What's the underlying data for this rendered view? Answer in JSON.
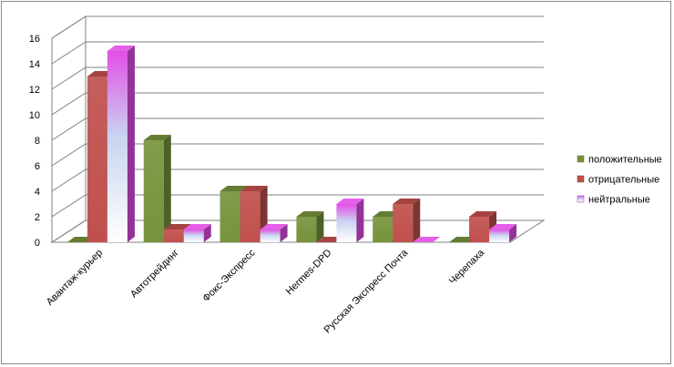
{
  "chart_data": {
    "type": "bar",
    "title": "",
    "xlabel": "",
    "ylabel": "",
    "ylim": [
      0,
      16
    ],
    "yticks": [
      0,
      2,
      4,
      6,
      8,
      10,
      12,
      14,
      16
    ],
    "grid": true,
    "legend_position": "right",
    "categories": [
      "Авантаж-курьер",
      "Автотрейдинг",
      "Фокс-Экспресс",
      "Hermes-DPD",
      "Русская Экспресс Почта",
      "Черепаха"
    ],
    "series": [
      {
        "name": "положительные",
        "values": [
          0,
          8,
          4,
          2,
          2,
          0
        ],
        "color": "#77933c"
      },
      {
        "name": "отрицательные",
        "values": [
          13,
          1,
          4,
          0,
          3,
          2
        ],
        "color": "#c0504d"
      },
      {
        "name": "нейтральные",
        "values": [
          15,
          1,
          1,
          3,
          0,
          1
        ],
        "color": "#e24ee6"
      }
    ]
  }
}
